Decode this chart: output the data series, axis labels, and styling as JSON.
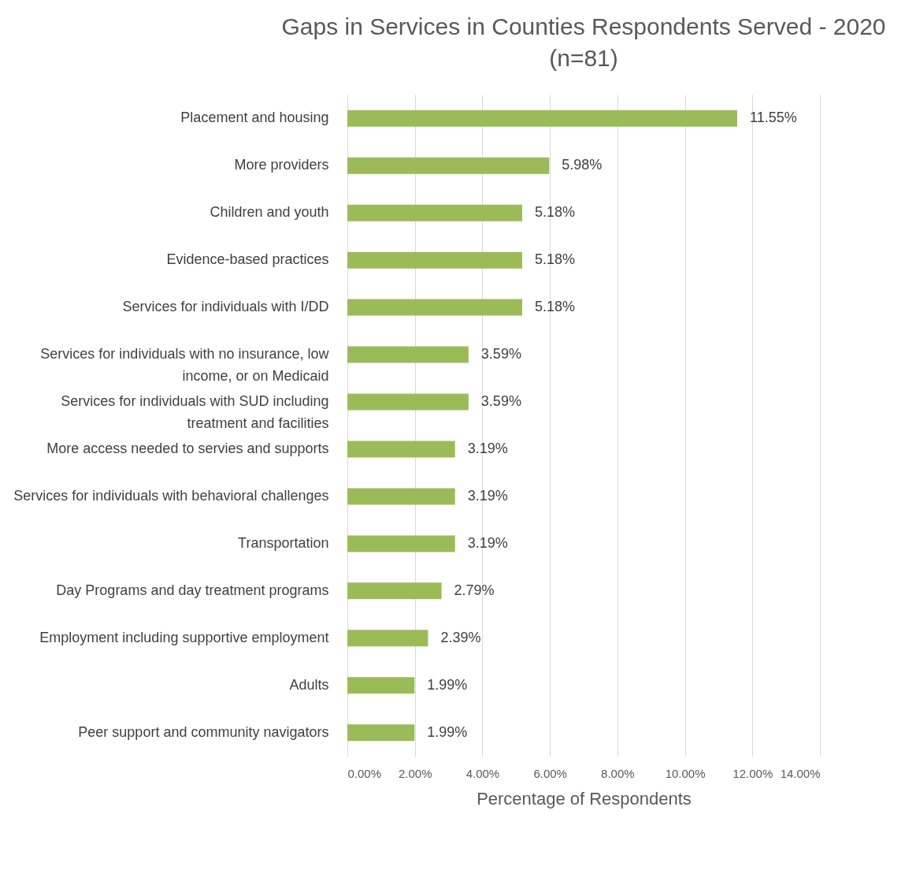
{
  "chart_data": {
    "type": "bar",
    "orientation": "horizontal",
    "title": "Gaps in Services in Counties Respondents Served - 2020 (n=81)",
    "xlabel": "Percentage of Respondents",
    "categories": [
      "Placement and housing",
      "More providers",
      "Children and youth",
      "Evidence-based practices",
      "Services for individuals with I/DD",
      "Services for individuals with no insurance, low income, or on Medicaid",
      "Services for individuals with SUD including treatment and facilities",
      "More access needed to servies and supports",
      "Services for individuals with behavioral challenges",
      "Transportation",
      "Day Programs and day treatment programs",
      "Employment including supportive employment",
      "Adults",
      "Peer support and community navigators"
    ],
    "values": [
      11.55,
      5.98,
      5.18,
      5.18,
      5.18,
      3.59,
      3.59,
      3.19,
      3.19,
      3.19,
      2.79,
      2.39,
      1.99,
      1.99
    ],
    "value_labels": [
      "11.55%",
      "5.98%",
      "5.18%",
      "5.18%",
      "5.18%",
      "3.59%",
      "3.59%",
      "3.19%",
      "3.19%",
      "3.19%",
      "2.79%",
      "2.39%",
      "1.99%",
      "1.99%"
    ],
    "color": "#9bbb59",
    "xlim": [
      0,
      14
    ],
    "xticks": [
      {
        "value": 0,
        "label": "0.00%"
      },
      {
        "value": 2,
        "label": "2.00%"
      },
      {
        "value": 4,
        "label": "4.00%"
      },
      {
        "value": 6,
        "label": "6.00%"
      },
      {
        "value": 8,
        "label": "8.00%"
      },
      {
        "value": 10,
        "label": "10.00%"
      },
      {
        "value": 12,
        "label": "12.00%"
      },
      {
        "value": 14,
        "label": "14.00%"
      }
    ],
    "grid": "x"
  }
}
